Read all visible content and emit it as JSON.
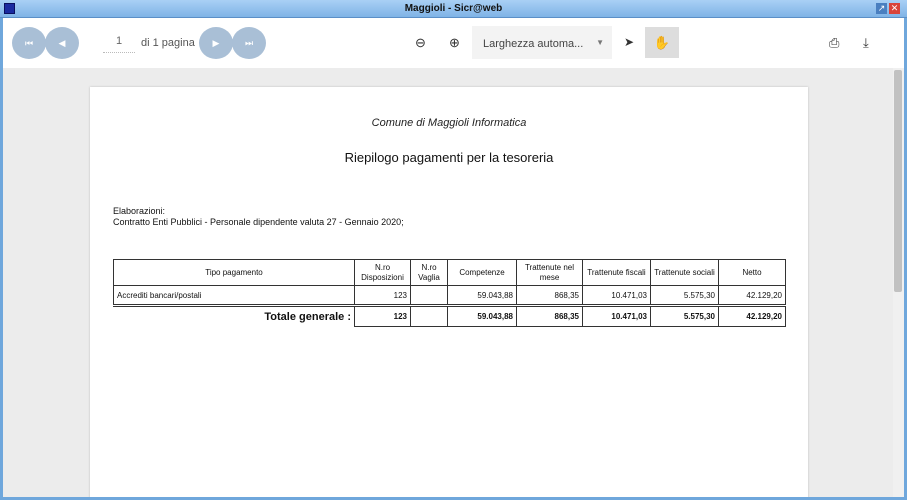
{
  "window": {
    "title": "Maggioli - Sicr@web"
  },
  "toolbar": {
    "page_value": "1",
    "page_of": "di 1 pagina",
    "zoom_value": "Larghezza automa...",
    "icons": [
      "first-page",
      "prev-page",
      "next-page",
      "last-page",
      "zoom-out",
      "zoom-in",
      "select-cursor",
      "hand-tool",
      "print",
      "download"
    ]
  },
  "document": {
    "organization": "Comune di Maggioli Informatica",
    "report_title": "Riepilogo pagamenti per la tesoreria",
    "elaborations_label": "Elaborazioni:",
    "elaborations_text": "Contratto Enti Pubblici - Personale dipendente valuta 27 - Gennaio 2020;",
    "table": {
      "headers": [
        "Tipo pagamento",
        "N.ro Disposizioni",
        "N.ro Vaglia",
        "Competenze",
        "Trattenute nel mese",
        "Trattenute fiscali",
        "Trattenute sociali",
        "Netto"
      ],
      "rows": [
        [
          "Accrediti bancari/postali",
          "123",
          "",
          "59.043,88",
          "868,35",
          "10.471,03",
          "5.575,30",
          "42.129,20"
        ]
      ],
      "total": [
        "Totale generale :",
        "123",
        "",
        "59.043,88",
        "868,35",
        "10.471,03",
        "5.575,30",
        "42.129,20"
      ]
    }
  }
}
